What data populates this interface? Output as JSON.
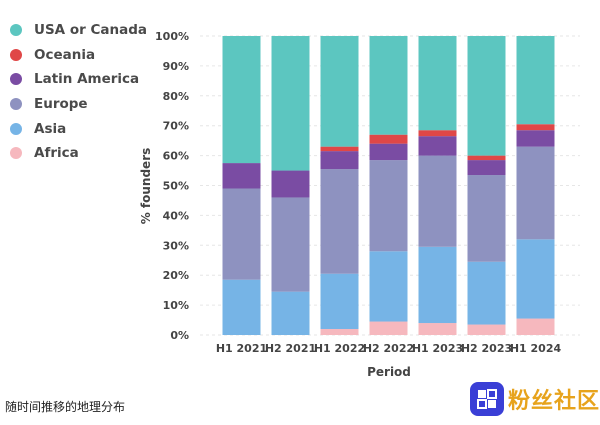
{
  "chart_data": {
    "type": "bar",
    "stacked": true,
    "categories": [
      "H1 2021",
      "H2 2021",
      "H1 2022",
      "H2 2022",
      "H1 2023",
      "H2 2023",
      "H1 2024"
    ],
    "xlabel": "Period",
    "ylabel": "% founders",
    "ylim": [
      0,
      100
    ],
    "y_ticks": [
      "0%",
      "10%",
      "20%",
      "30%",
      "40%",
      "50%",
      "60%",
      "70%",
      "80%",
      "90%",
      "100%"
    ],
    "grid": true,
    "legend_position": "left",
    "series": [
      {
        "name": "Africa",
        "color": "#f6b8be",
        "values": [
          0,
          0,
          2,
          4.5,
          4,
          3.5,
          5.5
        ]
      },
      {
        "name": "Asia",
        "color": "#76b4e6",
        "values": [
          18.5,
          14.5,
          18.5,
          23.5,
          25.5,
          21,
          26.5
        ]
      },
      {
        "name": "Europe",
        "color": "#8e92c0",
        "values": [
          30.5,
          31.5,
          35,
          30.5,
          30.5,
          29,
          31
        ]
      },
      {
        "name": "Latin America",
        "color": "#7a4ca3",
        "values": [
          8.5,
          9,
          6,
          5.5,
          6.5,
          5,
          5.5
        ]
      },
      {
        "name": "Oceania",
        "color": "#e04747",
        "values": [
          0,
          0,
          1.5,
          3,
          2,
          1.5,
          2
        ]
      },
      {
        "name": "USA or Canada",
        "color": "#5cc6c0",
        "values": [
          42.5,
          45,
          37,
          33,
          31.5,
          40,
          29.5
        ]
      }
    ]
  },
  "legend": [
    {
      "label": "USA or Canada",
      "color": "#5cc6c0"
    },
    {
      "label": "Oceania",
      "color": "#e04747"
    },
    {
      "label": "Latin America",
      "color": "#7a4ca3"
    },
    {
      "label": "Europe",
      "color": "#8e92c0"
    },
    {
      "label": "Asia",
      "color": "#76b4e6"
    },
    {
      "label": "Africa",
      "color": "#f6b8be"
    }
  ],
  "caption": "随时间推移的地理分布",
  "watermark": {
    "text": "粉丝社区"
  }
}
